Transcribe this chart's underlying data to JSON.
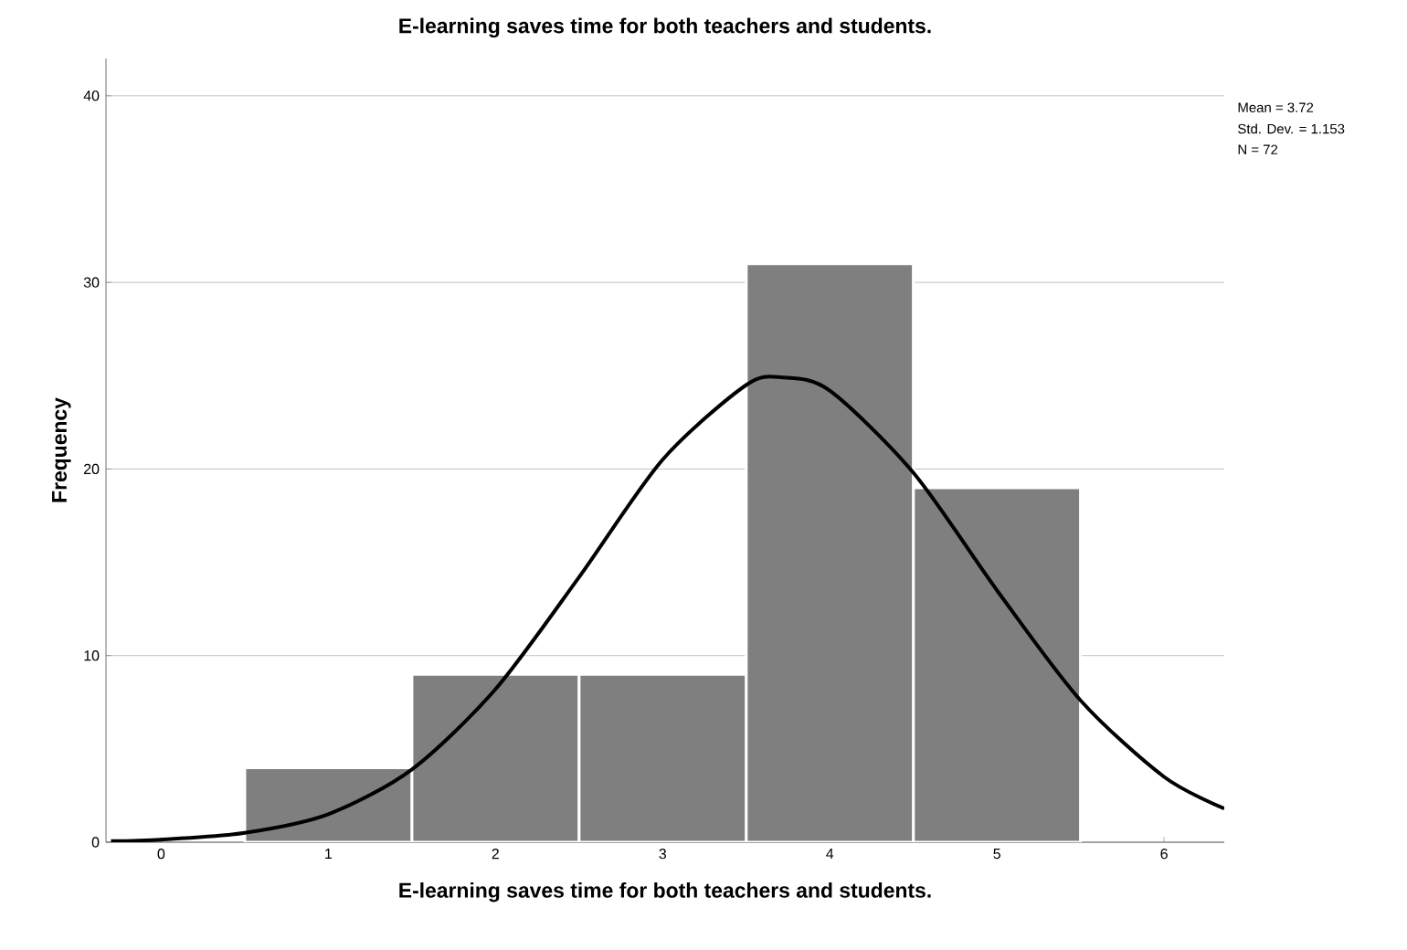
{
  "chart_data": {
    "type": "histogram",
    "title": "E-learning saves time for both teachers and students.",
    "xlabel": "E-learning saves time for both teachers and students.",
    "ylabel": "Frequency",
    "bins": [
      0.5,
      1.5,
      2.5,
      3.5,
      4.5,
      5.5
    ],
    "values": [
      4,
      9,
      9,
      31,
      19
    ],
    "color": "#7f7f7f",
    "series": [
      {
        "type": "line",
        "color": "#000000",
        "x": [
          -0.3,
          0,
          0.5,
          1,
          1.5,
          2,
          2.5,
          3,
          3.5,
          3.72,
          4,
          4.5,
          5,
          5.5,
          6,
          6.36
        ],
        "values": [
          0.06,
          0.14,
          0.5,
          1.5,
          3.9,
          8.2,
          14.2,
          20.5,
          24.5,
          24.9,
          24.2,
          19.8,
          13.5,
          7.6,
          3.5,
          1.8
        ]
      }
    ],
    "xlim": [
      -0.33,
      6.36
    ],
    "ylim": [
      0,
      42
    ],
    "xticks": [
      0,
      1,
      2,
      3,
      4,
      5,
      6
    ],
    "yticks": [
      0,
      10,
      20,
      30,
      40
    ],
    "grid": "y",
    "annotations": [
      "Mean = 3.72",
      "Std. Dev. = 1.153",
      "N = 72"
    ]
  }
}
